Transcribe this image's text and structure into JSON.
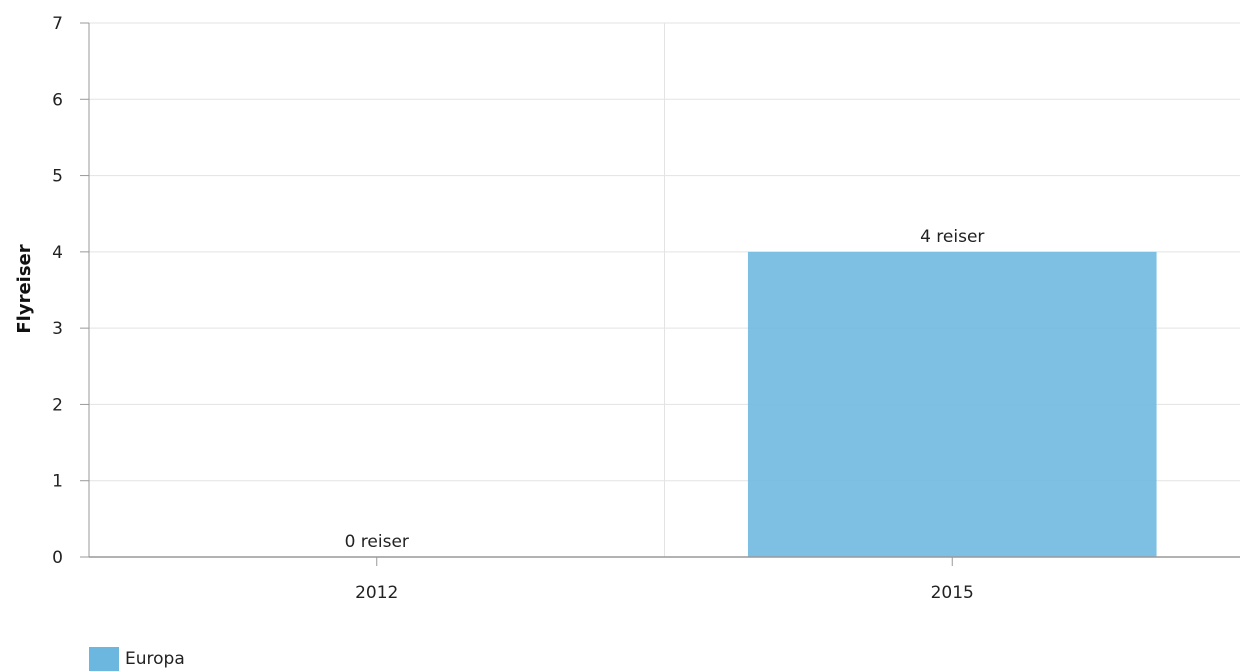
{
  "chart_data": {
    "type": "bar",
    "categories": [
      "2012",
      "2015"
    ],
    "series": [
      {
        "name": "Europa",
        "values": [
          0,
          4
        ],
        "color": "#6bb7e0"
      }
    ],
    "data_labels": [
      "0 reiser",
      "4 reiser"
    ],
    "ylabel": "Flyreiser",
    "ylim": [
      0,
      7
    ],
    "yticks": [
      "0",
      "1",
      "2",
      "3",
      "4",
      "5",
      "6",
      "7"
    ],
    "grid": true,
    "legend_position": "bottom-left"
  }
}
